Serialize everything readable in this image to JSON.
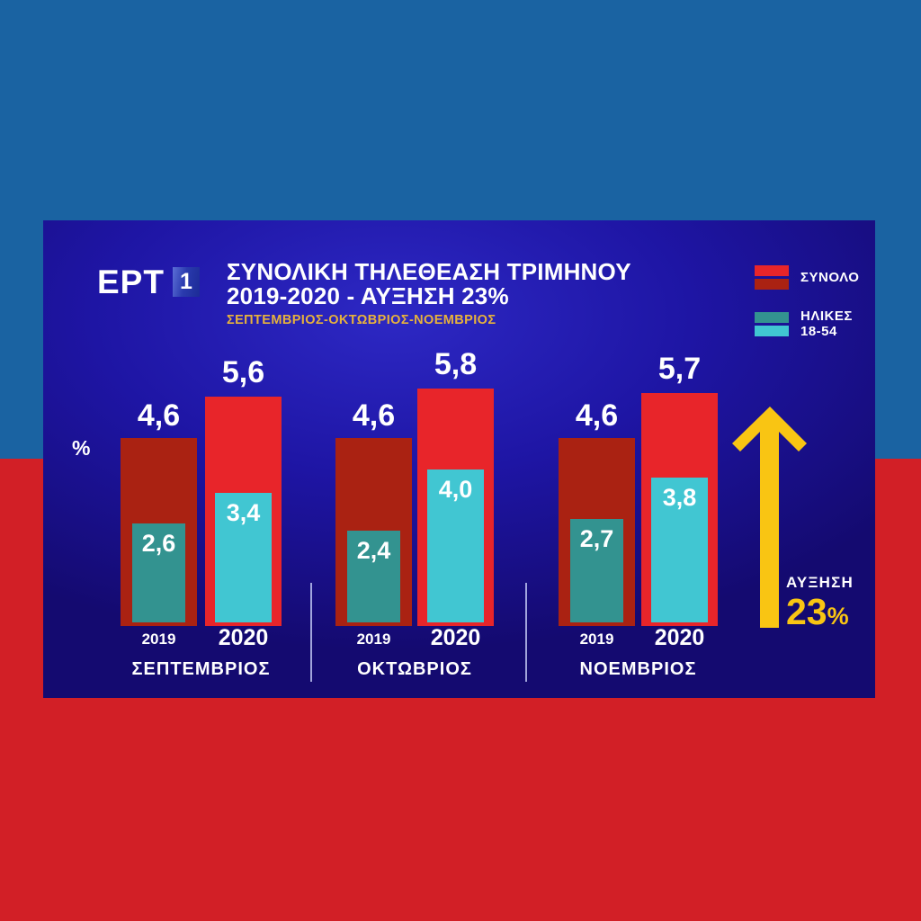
{
  "canvas": {
    "background_top_color": "#1a63a2",
    "background_bottom_color": "#d21f26",
    "panel_gradient_colors": [
      "#2d28c4",
      "#1e15a4",
      "#140a70"
    ]
  },
  "header": {
    "logo_text": "ΕΡΤ",
    "logo_channel_number": "1",
    "title_line1": "ΣΥΝΟΛΙΚΗ ΤΗΛΕΘΕΑΣΗ ΤΡΙΜΗΝΟΥ",
    "title_line2": "2019-2020 - ΑΥΞΗΣΗ 23%",
    "subtitle": "ΣΕΠΤΕΜΒΡΙΟΣ-ΟΚΤΩΒΡΙΟΣ-ΝΟΕΜΒΡΙΟΣ",
    "subtitle_color": "#e7b23c"
  },
  "legend": {
    "items": [
      {
        "lines": [
          "ΣΥΝΟΛΟ"
        ],
        "swatch_colors": [
          "#e8252a",
          "#aa2212"
        ]
      },
      {
        "lines": [
          "ΗΛΙΚΕΣ",
          "18-54"
        ],
        "swatch_colors": [
          "#339390",
          "#41c6d2"
        ]
      }
    ]
  },
  "chart_data": {
    "type": "bar",
    "variant": "grouped-nested",
    "title": "ΣΥΝΟΛΙΚΗ ΤΗΛΕΘΕΑΣΗ ΤΡΙΜΗΝΟΥ 2019-2020 - ΑΥΞΗΣΗ 23%",
    "subtitle": "ΣΕΠΤΕΜΒΡΙΟΣ-ΟΚΤΩΒΡΙΟΣ-ΝΟΕΜΒΡΙΟΣ",
    "ylabel": "%",
    "unit": "%",
    "grid": false,
    "legend_position": "top-right",
    "categories": [
      "ΣΕΠΤΕΜΒΡΙΟΣ",
      "ΟΚΤΩΒΡΙΟΣ",
      "ΝΟΕΜΒΡΙΟΣ"
    ],
    "year_labels": [
      "2019",
      "2020"
    ],
    "series": [
      {
        "name": "ΣΥΝΟΛΟ 2019",
        "values": [
          4.6,
          4.6,
          4.6
        ]
      },
      {
        "name": "ΗΛΙΚΕΣ 18-54 2019",
        "values": [
          2.6,
          2.4,
          2.7
        ]
      },
      {
        "name": "ΣΥΝΟΛΟ 2020",
        "values": [
          5.6,
          5.8,
          5.7
        ]
      },
      {
        "name": "ΗΛΙΚΕΣ 18-54 2020",
        "values": [
          3.4,
          4.0,
          3.8
        ]
      }
    ],
    "colors": {
      "total_2019": "#aa2212",
      "total_2020": "#e8252a",
      "ages_2019": "#339390",
      "ages_2020": "#41c6d2"
    },
    "groups": [
      {
        "month": "ΣΕΠΤΕΜΒΡΙΟΣ",
        "y2019": {
          "total": 4.6,
          "total_label": "4,6",
          "ages": 2.6,
          "ages_label": "2,6"
        },
        "y2020": {
          "total": 5.6,
          "total_label": "5,6",
          "ages": 3.4,
          "ages_label": "3,4"
        }
      },
      {
        "month": "ΟΚΤΩΒΡΙΟΣ",
        "y2019": {
          "total": 4.6,
          "total_label": "4,6",
          "ages": 2.4,
          "ages_label": "2,4"
        },
        "y2020": {
          "total": 5.8,
          "total_label": "5,8",
          "ages": 4.0,
          "ages_label": "4,0"
        }
      },
      {
        "month": "ΝΟΕΜΒΡΙΟΣ",
        "y2019": {
          "total": 4.6,
          "total_label": "4,6",
          "ages": 2.7,
          "ages_label": "2,7"
        },
        "y2020": {
          "total": 5.7,
          "total_label": "5,7",
          "ages": 3.8,
          "ages_label": "3,8"
        }
      }
    ]
  },
  "annotation": {
    "label": "ΑΥΞΗΣΗ",
    "value": "23",
    "percent_sign": "%",
    "arrow_color": "#f9c513",
    "value_color": "#f9c513"
  }
}
